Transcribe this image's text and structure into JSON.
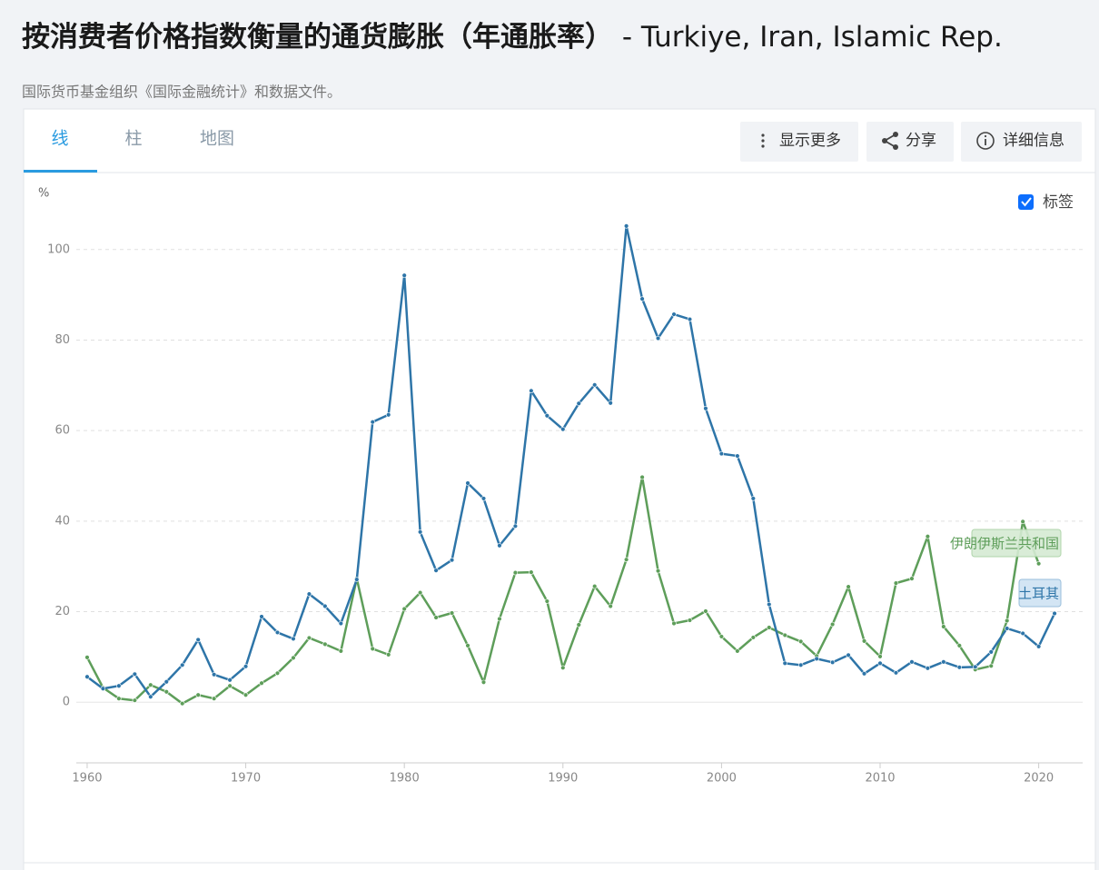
{
  "page": {
    "title": "按消费者价格指数衡量的通货膨胀（年通胀率）",
    "title_countries": " - Turkiye, Iran, Islamic Rep.",
    "source": "国际货币基金组织《国际金融统计》和数据文件。",
    "tabs": [
      "线",
      "柱",
      "地图"
    ],
    "buttons": [
      "显示更多",
      "分享",
      "详细信息"
    ],
    "labels_toggle": "标签"
  },
  "chart_data": {
    "type": "line",
    "y_unit": "%",
    "x": [
      1960,
      1961,
      1962,
      1963,
      1964,
      1965,
      1966,
      1967,
      1968,
      1969,
      1970,
      1971,
      1972,
      1973,
      1974,
      1975,
      1976,
      1977,
      1978,
      1979,
      1980,
      1981,
      1982,
      1983,
      1984,
      1985,
      1986,
      1987,
      1988,
      1989,
      1990,
      1991,
      1992,
      1993,
      1994,
      1995,
      1996,
      1997,
      1998,
      1999,
      2000,
      2001,
      2002,
      2003,
      2004,
      2005,
      2006,
      2007,
      2008,
      2009,
      2010,
      2011,
      2012,
      2013,
      2014,
      2015,
      2016,
      2017,
      2018,
      2019,
      2020,
      2021
    ],
    "series": [
      {
        "name": "土耳其",
        "color": "#2e75a8",
        "values": [
          5.6,
          3.0,
          3.6,
          6.2,
          1.2,
          4.5,
          8.2,
          13.8,
          6.1,
          4.9,
          7.9,
          18.9,
          15.4,
          14.0,
          23.9,
          21.2,
          17.4,
          27.1,
          61.9,
          63.5,
          94.3,
          37.6,
          29.1,
          31.4,
          48.4,
          45.0,
          34.6,
          38.9,
          68.8,
          63.3,
          60.3,
          66.0,
          70.1,
          66.1,
          105.2,
          89.1,
          80.4,
          85.7,
          84.6,
          64.9,
          54.9,
          54.4,
          45.0,
          21.6,
          8.6,
          8.2,
          9.6,
          8.8,
          10.4,
          6.3,
          8.6,
          6.5,
          8.9,
          7.5,
          8.9,
          7.7,
          7.8,
          11.1,
          16.3,
          15.2,
          12.3,
          19.6
        ]
      },
      {
        "name": "伊朗伊斯兰共和国",
        "color": "#5e9e5a",
        "values": [
          9.9,
          3.2,
          0.8,
          0.4,
          3.8,
          2.3,
          -0.3,
          1.6,
          0.8,
          3.6,
          1.6,
          4.2,
          6.4,
          9.8,
          14.2,
          12.8,
          11.3,
          27.3,
          11.8,
          10.5,
          20.6,
          24.2,
          18.7,
          19.7,
          12.5,
          4.4,
          18.4,
          28.6,
          28.7,
          22.3,
          7.6,
          17.1,
          25.6,
          21.2,
          31.5,
          49.7,
          29.0,
          17.4,
          18.1,
          20.1,
          14.5,
          11.3,
          14.3,
          16.5,
          14.8,
          13.4,
          10.2,
          17.2,
          25.5,
          13.5,
          10.1,
          26.3,
          27.3,
          36.6,
          16.7,
          12.5,
          7.2,
          8.0,
          18.0,
          39.9,
          30.6,
          null
        ]
      }
    ],
    "xlim": [
      1959,
      2023
    ],
    "xticks": [
      1960,
      1970,
      1980,
      1990,
      2000,
      2010,
      2020
    ],
    "ylim": [
      -12,
      112
    ],
    "yticks": [
      0,
      20,
      40,
      60,
      80,
      100
    ],
    "grid": true
  }
}
